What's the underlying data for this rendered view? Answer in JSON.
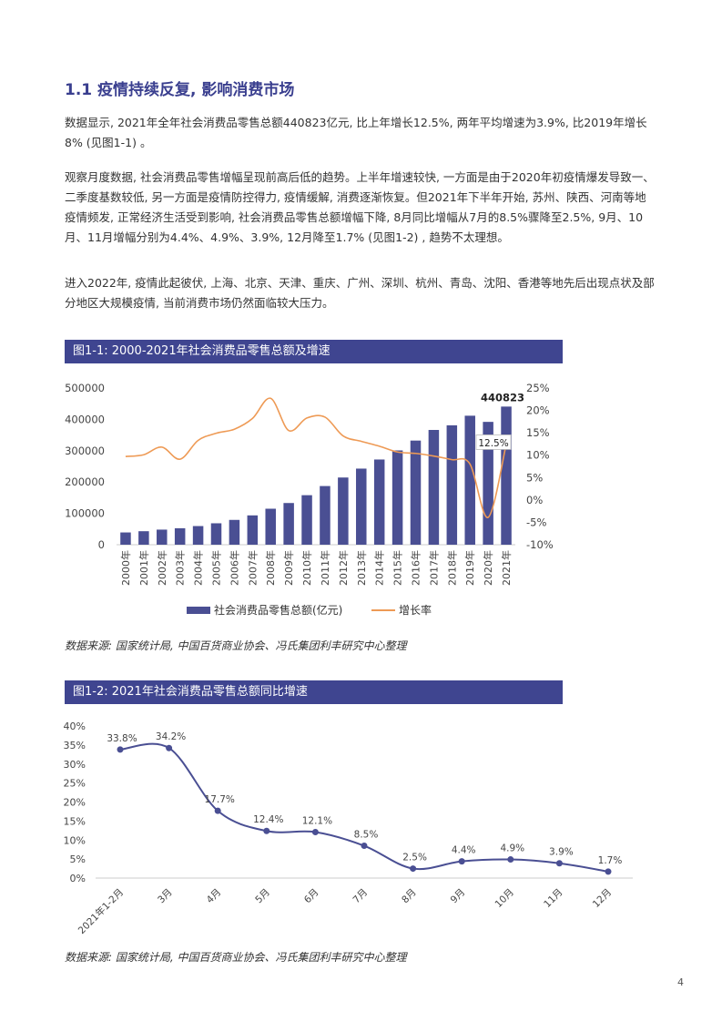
{
  "section": {
    "heading": "1.1 疫情持续反复, 影响消费市场",
    "paragraphs": [
      "数据显示, 2021年全年社会消费品零售总额440823亿元, 比上年增长12.5%, 两年平均增速为3.9%, 比2019年增长8% (见图1-1) 。",
      "观察月度数据, 社会消费品零售增幅呈现前高后低的趋势。上半年增速较快, 一方面是由于2020年初疫情爆发导致一、二季度基数较低, 另一方面是疫情防控得力, 疫情缓解, 消费逐渐恢复。但2021年下半年开始, 苏州、陕西、河南等地疫情频发, 正常经济生活受到影响, 社会消费品零售总额增幅下降, 8月同比增幅从7月的8.5%骤降至2.5%, 9月、10月、11月增幅分别为4.4%、4.9%、3.9%, 12月降至1.7% (见图1-2) , 趋势不太理想。",
      "进入2022年, 疫情此起彼伏, 上海、北京、天津、重庆、广州、深圳、杭州、青岛、沈阳、香港等地先后出现点状及部分地区大规模疫情, 当前消费市场仍然面临较大压力。"
    ]
  },
  "page_number": "4",
  "chart_data": [
    {
      "type": "bar",
      "title": "图1-1: 2000-2021年社会消费品零售总额及增速",
      "categories": [
        "2000年",
        "2001年",
        "2002年",
        "2003年",
        "2004年",
        "2005年",
        "2006年",
        "2007年",
        "2008年",
        "2009年",
        "2010年",
        "2011年",
        "2012年",
        "2013年",
        "2014年",
        "2015年",
        "2016年",
        "2017年",
        "2018年",
        "2019年",
        "2020年",
        "2021年"
      ],
      "series": [
        {
          "name": "社会消费品零售总额(亿元)",
          "type": "bar",
          "axis": "left",
          "color": "#4a4f93",
          "values": [
            39106,
            43055,
            48136,
            52516,
            59501,
            68353,
            79145,
            93572,
            114830,
            133048,
            158008,
            187206,
            214433,
            242843,
            271896,
            300931,
            332316,
            366262,
            380987,
            411649,
            391981,
            440823
          ]
        },
        {
          "name": "增长率",
          "type": "line",
          "axis": "right",
          "color": "#ee9a55",
          "values": [
            9.7,
            10.1,
            11.8,
            9.1,
            13.3,
            14.9,
            15.8,
            18.2,
            22.7,
            15.5,
            18.3,
            18.5,
            14.3,
            13.1,
            12.0,
            10.7,
            10.4,
            9.8,
            9.0,
            8.0,
            -3.9,
            12.5
          ]
        }
      ],
      "ylim_left": [
        0,
        500000
      ],
      "ylim_right": [
        -10,
        25
      ],
      "yticks_left": [
        "0",
        "100000",
        "200000",
        "300000",
        "400000",
        "500000"
      ],
      "yticks_right": [
        "-10%",
        "-5%",
        "0%",
        "5%",
        "10%",
        "15%",
        "20%",
        "25%"
      ],
      "annotations": {
        "last_bar_label": "440823",
        "last_rate_label": "12.5%"
      },
      "legend_position": "bottom",
      "source": "数据来源: 国家统计局, 中国百货商业协会、冯氏集团利丰研究中心整理"
    },
    {
      "type": "line",
      "title": "图1-2: 2021年社会消费品零售总额同比增速",
      "categories": [
        "2021年1-2月",
        "3月",
        "4月",
        "5月",
        "6月",
        "7月",
        "8月",
        "9月",
        "10月",
        "11月",
        "12月"
      ],
      "values": [
        33.8,
        34.2,
        17.7,
        12.4,
        12.1,
        8.5,
        2.5,
        4.4,
        4.9,
        3.9,
        1.7
      ],
      "value_labels": [
        "33.8%",
        "34.2%",
        "17.7%",
        "12.4%",
        "12.1%",
        "8.5%",
        "2.5%",
        "4.4%",
        "4.9%",
        "3.9%",
        "1.7%"
      ],
      "ylim": [
        0,
        40
      ],
      "yticks": [
        "0%",
        "5%",
        "10%",
        "15%",
        "20%",
        "25%",
        "30%",
        "35%",
        "40%"
      ],
      "color": "#4a4f93",
      "source": "数据来源: 国家统计局, 中国百货商业协会、冯氏集团利丰研究中心整理"
    }
  ]
}
